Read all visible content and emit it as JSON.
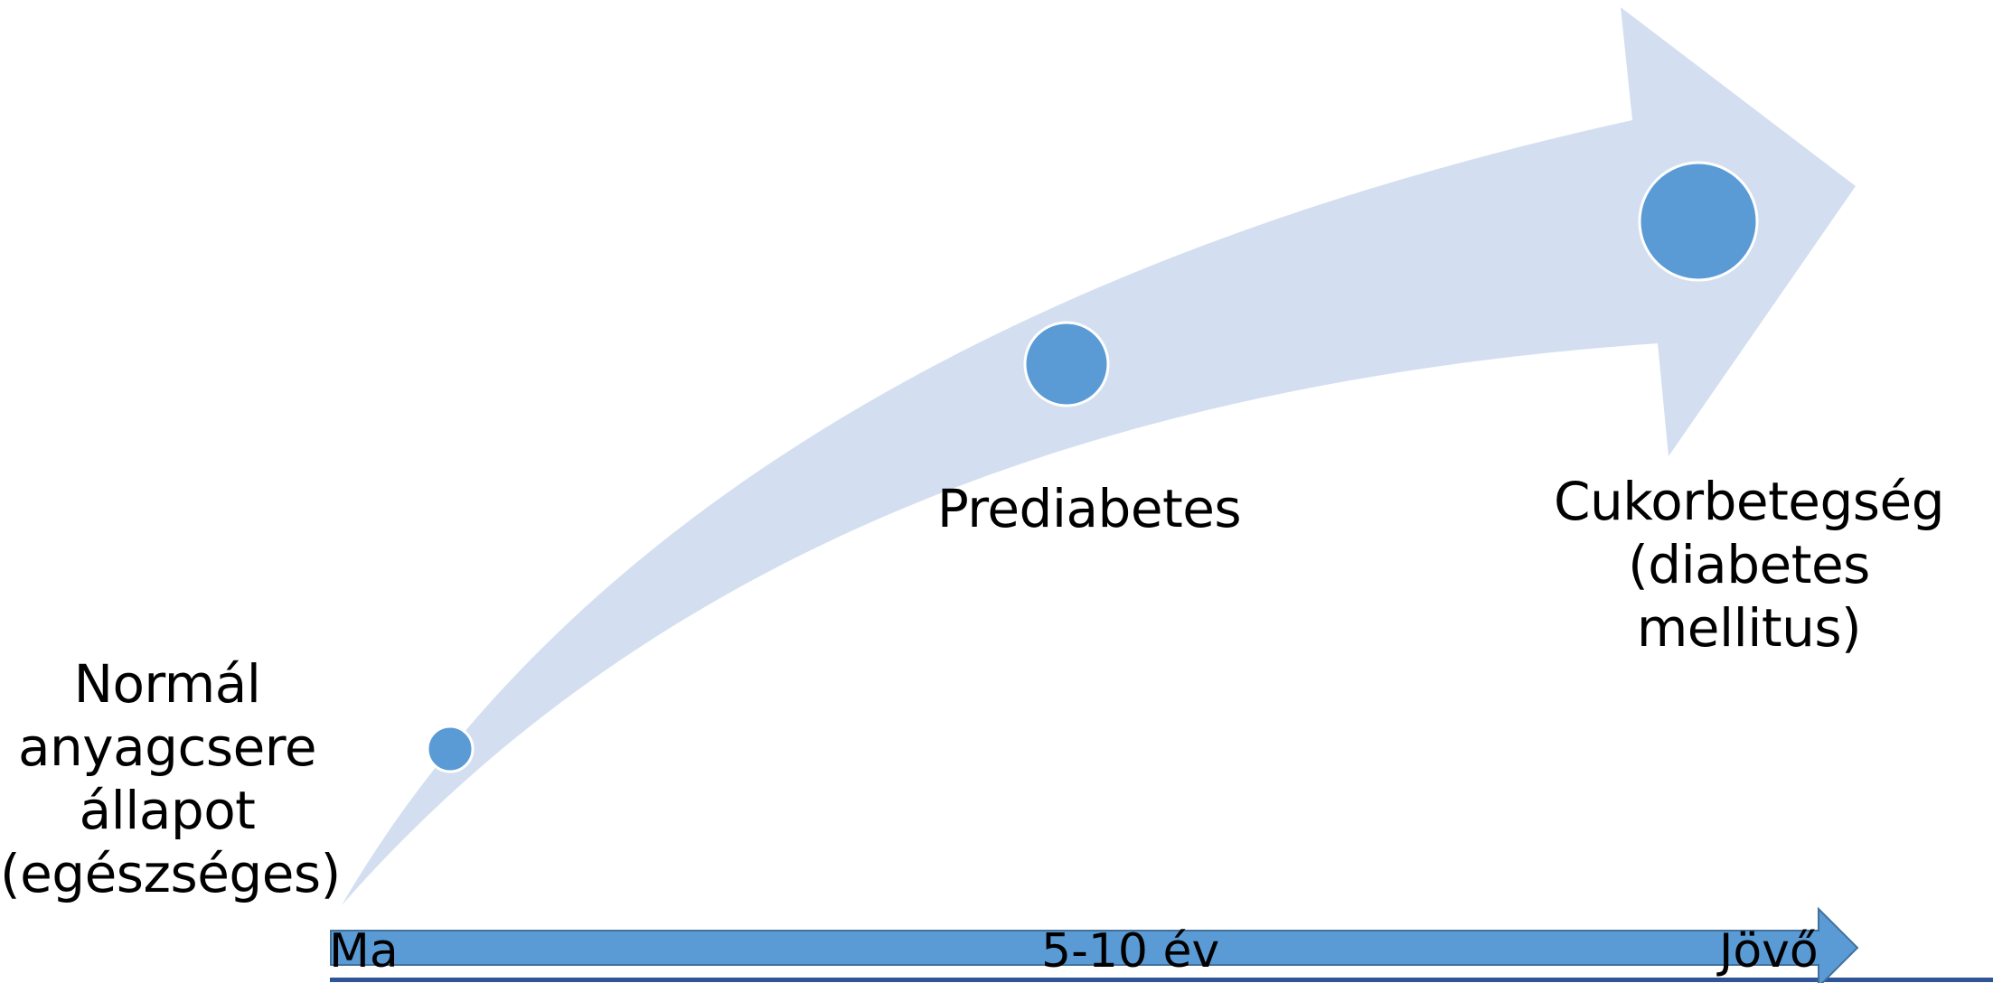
{
  "stages": [
    {
      "id": "normal",
      "label": "Normál\nanyagcsere\nállapot\n(egészséges)"
    },
    {
      "id": "prediabetes",
      "label": "Prediabetes"
    },
    {
      "id": "diabetes",
      "label": "Cukorbetegség\n(diabetes mellitus)"
    }
  ],
  "timeline": {
    "start": "Ma",
    "middle": "5-10 év",
    "end": "Jövő"
  },
  "colors": {
    "curved_arrow": "#d3dff0",
    "dot_fill": "#5b9bd5",
    "dot_stroke": "#ffffff",
    "timeline_fill": "#5b9bd5",
    "timeline_stroke": "#41719c",
    "baseline": "#2e5597"
  }
}
